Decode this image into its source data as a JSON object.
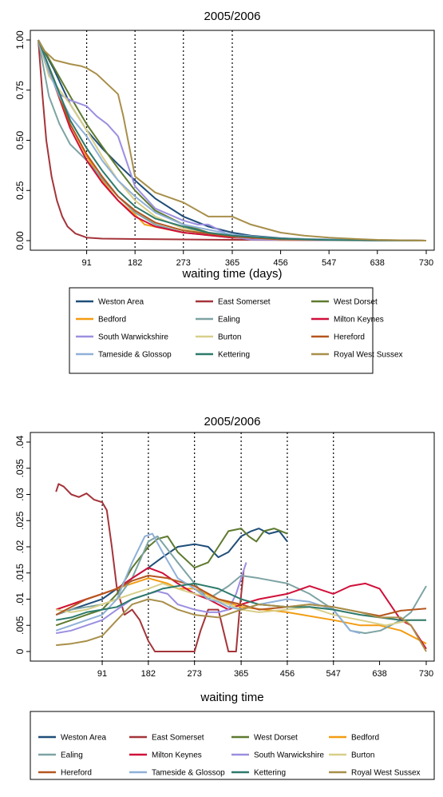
{
  "chart_data": [
    {
      "type": "line",
      "title": "2005/2006",
      "xlabel": "waiting time (days)",
      "ylabel": "",
      "xlim": [
        0,
        730
      ],
      "ylim": [
        0,
        1
      ],
      "x_ticks": [
        91,
        182,
        273,
        365,
        456,
        547,
        638,
        730
      ],
      "y_ticks": [
        "0.00",
        "0.25",
        "0.50",
        "0.75",
        "1.00"
      ],
      "y_tick_values": [
        0,
        0.25,
        0.5,
        0.75,
        1
      ],
      "vlines": [
        91,
        182,
        273,
        365
      ],
      "grid": false,
      "legend_position": "bottom",
      "series": [
        {
          "name": "Weston Area",
          "color": "#1f4e79",
          "x": [
            0,
            30,
            60,
            91,
            120,
            150,
            182,
            220,
            273,
            320,
            365,
            400,
            456,
            547,
            638,
            730
          ],
          "y": [
            1,
            0.85,
            0.68,
            0.55,
            0.46,
            0.38,
            0.3,
            0.21,
            0.12,
            0.07,
            0.04,
            0.025,
            0.012,
            0.004,
            0.001,
            0
          ]
        },
        {
          "name": "East Somerset",
          "color": "#a4343a",
          "x": [
            0,
            8,
            15,
            25,
            35,
            45,
            55,
            70,
            91,
            120,
            182,
            365,
            730
          ],
          "y": [
            1,
            0.72,
            0.5,
            0.32,
            0.2,
            0.12,
            0.07,
            0.035,
            0.015,
            0.01,
            0.008,
            0.004,
            0
          ]
        },
        {
          "name": "West Dorset",
          "color": "#5e7a2f",
          "x": [
            0,
            30,
            60,
            91,
            120,
            150,
            182,
            220,
            273,
            320,
            365,
            456,
            547,
            730
          ],
          "y": [
            1,
            0.86,
            0.72,
            0.58,
            0.47,
            0.36,
            0.25,
            0.15,
            0.08,
            0.04,
            0.02,
            0.008,
            0.003,
            0
          ]
        },
        {
          "name": "Bedford",
          "color": "#f39c12",
          "x": [
            0,
            30,
            60,
            91,
            120,
            150,
            182,
            200,
            273,
            365,
            456,
            730
          ],
          "y": [
            1,
            0.8,
            0.58,
            0.42,
            0.3,
            0.2,
            0.13,
            0.08,
            0.04,
            0.015,
            0.005,
            0
          ]
        },
        {
          "name": "Ealing",
          "color": "#7ea3a3",
          "x": [
            0,
            20,
            40,
            60,
            91,
            120,
            150,
            182,
            220,
            273,
            365,
            456,
            730
          ],
          "y": [
            1,
            0.72,
            0.58,
            0.48,
            0.4,
            0.31,
            0.22,
            0.14,
            0.08,
            0.04,
            0.015,
            0.005,
            0
          ]
        },
        {
          "name": "Milton Keynes",
          "color": "#d0103a",
          "x": [
            0,
            30,
            60,
            91,
            120,
            150,
            182,
            220,
            273,
            365,
            456,
            730
          ],
          "y": [
            1,
            0.78,
            0.56,
            0.4,
            0.29,
            0.2,
            0.12,
            0.07,
            0.04,
            0.015,
            0.005,
            0
          ]
        },
        {
          "name": "South Warwickshire",
          "color": "#9b8fe0",
          "x": [
            0,
            20,
            40,
            60,
            91,
            110,
            130,
            150,
            182,
            220,
            273,
            300,
            320,
            365,
            400,
            730
          ],
          "y": [
            1,
            0.85,
            0.73,
            0.7,
            0.67,
            0.62,
            0.58,
            0.52,
            0.27,
            0.16,
            0.1,
            0.08,
            0.08,
            0.02,
            0.005,
            0
          ]
        },
        {
          "name": "Burton",
          "color": "#d8cf8a",
          "x": [
            0,
            20,
            40,
            60,
            91,
            120,
            150,
            182,
            220,
            273,
            365,
            456,
            730
          ],
          "y": [
            1,
            0.82,
            0.75,
            0.68,
            0.55,
            0.42,
            0.3,
            0.2,
            0.12,
            0.06,
            0.02,
            0.005,
            0
          ]
        },
        {
          "name": "Hereford",
          "color": "#b5561f",
          "x": [
            0,
            30,
            60,
            91,
            120,
            150,
            182,
            220,
            273,
            365,
            456,
            730
          ],
          "y": [
            1,
            0.78,
            0.58,
            0.43,
            0.32,
            0.22,
            0.15,
            0.09,
            0.05,
            0.02,
            0.006,
            0
          ]
        },
        {
          "name": "Tameside & Glossop",
          "color": "#8fb0d8",
          "x": [
            0,
            20,
            40,
            60,
            91,
            120,
            150,
            182,
            220,
            273,
            365,
            456,
            730
          ],
          "y": [
            1,
            0.84,
            0.72,
            0.62,
            0.52,
            0.4,
            0.3,
            0.22,
            0.14,
            0.08,
            0.03,
            0.01,
            0
          ]
        },
        {
          "name": "Kettering",
          "color": "#2d7a6b",
          "x": [
            0,
            30,
            60,
            91,
            120,
            150,
            182,
            220,
            273,
            320,
            365,
            456,
            547,
            730
          ],
          "y": [
            1,
            0.8,
            0.6,
            0.46,
            0.35,
            0.25,
            0.17,
            0.11,
            0.07,
            0.04,
            0.025,
            0.01,
            0.003,
            0
          ]
        },
        {
          "name": "Royal West Sussex",
          "color": "#a88f4a",
          "x": [
            0,
            10,
            30,
            60,
            80,
            91,
            110,
            130,
            150,
            160,
            182,
            220,
            273,
            320,
            365,
            400,
            456,
            500,
            547,
            600,
            638,
            730
          ],
          "y": [
            1,
            0.95,
            0.9,
            0.88,
            0.87,
            0.86,
            0.83,
            0.78,
            0.73,
            0.62,
            0.32,
            0.24,
            0.19,
            0.12,
            0.12,
            0.08,
            0.04,
            0.025,
            0.015,
            0.008,
            0.004,
            0
          ]
        }
      ]
    },
    {
      "type": "line",
      "title": "2005/2006",
      "xlabel": "waiting time",
      "ylabel": "",
      "xlim": [
        -35,
        730
      ],
      "ylim": [
        0,
        0.04
      ],
      "x_ticks": [
        91,
        182,
        273,
        365,
        456,
        547,
        638,
        730
      ],
      "y_ticks": [
        "0",
        ".005",
        ".01",
        ".015",
        ".02",
        ".025",
        ".03",
        ".035",
        ".04"
      ],
      "y_tick_values": [
        0,
        0.005,
        0.01,
        0.015,
        0.02,
        0.025,
        0.03,
        0.035,
        0.04
      ],
      "vlines": [
        91,
        182,
        273,
        365,
        456,
        547
      ],
      "grid": false,
      "legend_position": "bottom",
      "series": [
        {
          "name": "Weston Area",
          "color": "#1f4e79",
          "x": [
            0,
            30,
            60,
            91,
            120,
            150,
            182,
            210,
            240,
            273,
            300,
            320,
            340,
            365,
            385,
            400,
            420,
            440,
            456
          ],
          "y": [
            0.007,
            0.008,
            0.009,
            0.01,
            0.012,
            0.014,
            0.016,
            0.018,
            0.02,
            0.0205,
            0.02,
            0.018,
            0.019,
            0.022,
            0.023,
            0.0235,
            0.0225,
            0.023,
            0.021
          ]
        },
        {
          "name": "East Somerset",
          "color": "#a4343a",
          "x": [
            0,
            5,
            15,
            30,
            45,
            60,
            75,
            91,
            100,
            110,
            120,
            135,
            150,
            165,
            182,
            195,
            273,
            285,
            300,
            320,
            340,
            355,
            362,
            370
          ],
          "y": [
            0.0305,
            0.032,
            0.0315,
            0.03,
            0.0295,
            0.0302,
            0.029,
            0.0285,
            0.027,
            0.02,
            0.012,
            0.007,
            0.008,
            0.006,
            0.002,
            0,
            0,
            0.004,
            0.008,
            0.008,
            0,
            0,
            0.008,
            0.0155
          ]
        },
        {
          "name": "West Dorset",
          "color": "#5e7a2f",
          "x": [
            0,
            30,
            60,
            91,
            120,
            150,
            182,
            200,
            220,
            240,
            273,
            300,
            320,
            340,
            365,
            380,
            395,
            410,
            430,
            456
          ],
          "y": [
            0.005,
            0.006,
            0.007,
            0.008,
            0.011,
            0.016,
            0.02,
            0.0215,
            0.022,
            0.019,
            0.016,
            0.017,
            0.02,
            0.023,
            0.0235,
            0.022,
            0.021,
            0.023,
            0.0235,
            0.0225
          ]
        },
        {
          "name": "Bedford",
          "color": "#f39c12",
          "x": [
            0,
            30,
            60,
            91,
            120,
            150,
            182,
            220,
            240,
            273,
            320,
            365,
            456,
            547,
            600,
            638,
            680,
            730
          ],
          "y": [
            0.008,
            0.009,
            0.01,
            0.011,
            0.012,
            0.013,
            0.014,
            0.013,
            0.012,
            0.012,
            0.01,
            0.0085,
            0.0075,
            0.006,
            0.005,
            0.005,
            0.004,
            0.0015
          ]
        },
        {
          "name": "Ealing",
          "color": "#7ea3a3",
          "x": [
            0,
            30,
            60,
            91,
            120,
            150,
            182,
            200,
            240,
            273,
            300,
            340,
            365,
            400,
            456,
            500,
            547,
            580,
            610,
            640,
            680,
            700,
            730
          ],
          "y": [
            0.007,
            0.008,
            0.0085,
            0.009,
            0.01,
            0.014,
            0.021,
            0.022,
            0.017,
            0.013,
            0.01,
            0.0125,
            0.0145,
            0.014,
            0.013,
            0.011,
            0.008,
            0.004,
            0.0035,
            0.004,
            0.006,
            0.0075,
            0.0125
          ]
        },
        {
          "name": "Milton Keynes",
          "color": "#d0103a",
          "x": [
            0,
            30,
            60,
            91,
            120,
            150,
            182,
            210,
            240,
            273,
            300,
            320,
            340,
            365,
            400,
            456,
            500,
            547,
            580,
            610,
            638,
            680,
            700,
            730
          ],
          "y": [
            0.008,
            0.009,
            0.01,
            0.011,
            0.012,
            0.014,
            0.016,
            0.015,
            0.013,
            0.011,
            0.01,
            0.009,
            0.008,
            0.009,
            0.01,
            0.011,
            0.0125,
            0.011,
            0.0125,
            0.013,
            0.012,
            0.006,
            0.005,
            0.0005
          ]
        },
        {
          "name": "South Warwickshire",
          "color": "#9b8fe0",
          "x": [
            0,
            30,
            60,
            91,
            120,
            150,
            182,
            200,
            220,
            240,
            273,
            300,
            320,
            340,
            355,
            365,
            375
          ],
          "y": [
            0.0035,
            0.004,
            0.005,
            0.006,
            0.008,
            0.01,
            0.011,
            0.0115,
            0.011,
            0.009,
            0.008,
            0.0075,
            0.0075,
            0.008,
            0.011,
            0.014,
            0.017
          ]
        },
        {
          "name": "Burton",
          "color": "#d8cf8a",
          "x": [
            0,
            30,
            60,
            91,
            120,
            150,
            182,
            210,
            240,
            273,
            300,
            340,
            365,
            400,
            456,
            500,
            547,
            600,
            650,
            700,
            730
          ],
          "y": [
            0.008,
            0.0075,
            0.008,
            0.009,
            0.01,
            0.011,
            0.012,
            0.013,
            0.012,
            0.011,
            0.0105,
            0.009,
            0.008,
            0.0075,
            0.008,
            0.0085,
            0.007,
            0.006,
            0.005,
            0.006,
            0.006
          ]
        },
        {
          "name": "Hereford",
          "color": "#b5561f",
          "x": [
            0,
            30,
            60,
            91,
            120,
            150,
            182,
            220,
            273,
            320,
            365,
            400,
            456,
            500,
            547,
            600,
            638,
            680,
            730
          ],
          "y": [
            0.007,
            0.0085,
            0.01,
            0.011,
            0.012,
            0.0135,
            0.0145,
            0.014,
            0.0125,
            0.01,
            0.009,
            0.008,
            0.0085,
            0.009,
            0.0085,
            0.0075,
            0.0068,
            0.0078,
            0.0082
          ]
        },
        {
          "name": "Tameside & Glossop",
          "color": "#8fb0d8",
          "x": [
            0,
            30,
            60,
            91,
            120,
            150,
            175,
            190,
            210,
            240,
            273,
            300,
            320,
            340,
            365,
            400,
            456,
            500,
            547,
            580,
            600
          ],
          "y": [
            0.004,
            0.005,
            0.006,
            0.007,
            0.01,
            0.017,
            0.022,
            0.0225,
            0.019,
            0.014,
            0.012,
            0.01,
            0.0095,
            0.0085,
            0.008,
            0.009,
            0.01,
            0.0095,
            0.008,
            0.004,
            0.0035
          ]
        },
        {
          "name": "Kettering",
          "color": "#2d7a6b",
          "x": [
            0,
            30,
            60,
            91,
            120,
            150,
            182,
            210,
            240,
            273,
            320,
            365,
            400,
            456,
            500,
            547,
            600,
            638,
            680,
            730
          ],
          "y": [
            0.006,
            0.0065,
            0.0075,
            0.008,
            0.0085,
            0.01,
            0.011,
            0.012,
            0.0125,
            0.013,
            0.012,
            0.01,
            0.009,
            0.0085,
            0.0085,
            0.008,
            0.007,
            0.0065,
            0.006,
            0.006
          ]
        },
        {
          "name": "Royal West Sussex",
          "color": "#a88f4a",
          "x": [
            0,
            30,
            60,
            91,
            120,
            150,
            182,
            210,
            240,
            273,
            320,
            365,
            400,
            456,
            500,
            547,
            600,
            638,
            680,
            700,
            730
          ],
          "y": [
            0.0012,
            0.0015,
            0.002,
            0.003,
            0.006,
            0.009,
            0.01,
            0.0095,
            0.008,
            0.007,
            0.0065,
            0.008,
            0.009,
            0.0085,
            0.009,
            0.0085,
            0.0075,
            0.0065,
            0.0065,
            0.005,
            0.0
          ]
        }
      ]
    }
  ]
}
